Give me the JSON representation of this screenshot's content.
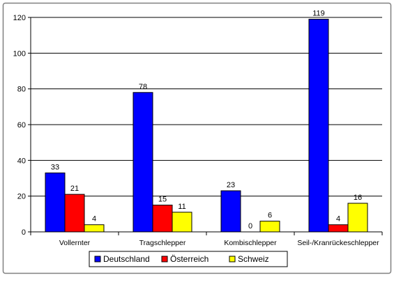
{
  "chart_data": {
    "type": "bar",
    "categories": [
      "Vollernter",
      "Tragschlepper",
      "Kombischlepper",
      "Seil-/Kranrückeschlepper"
    ],
    "series": [
      {
        "name": "Deutschland",
        "values": [
          33,
          78,
          23,
          119
        ],
        "color": "#0000ff"
      },
      {
        "name": "Österreich",
        "values": [
          21,
          15,
          0,
          4
        ],
        "color": "#ff0000"
      },
      {
        "name": "Schweiz",
        "values": [
          4,
          11,
          6,
          16
        ],
        "color": "#ffff00"
      }
    ],
    "ylim": [
      0,
      120
    ],
    "yticks": [
      0,
      20,
      40,
      60,
      80,
      100,
      120
    ],
    "grid": true,
    "legend_position": "bottom",
    "plot_background": "#ffffff",
    "frame_color": "#808080"
  }
}
